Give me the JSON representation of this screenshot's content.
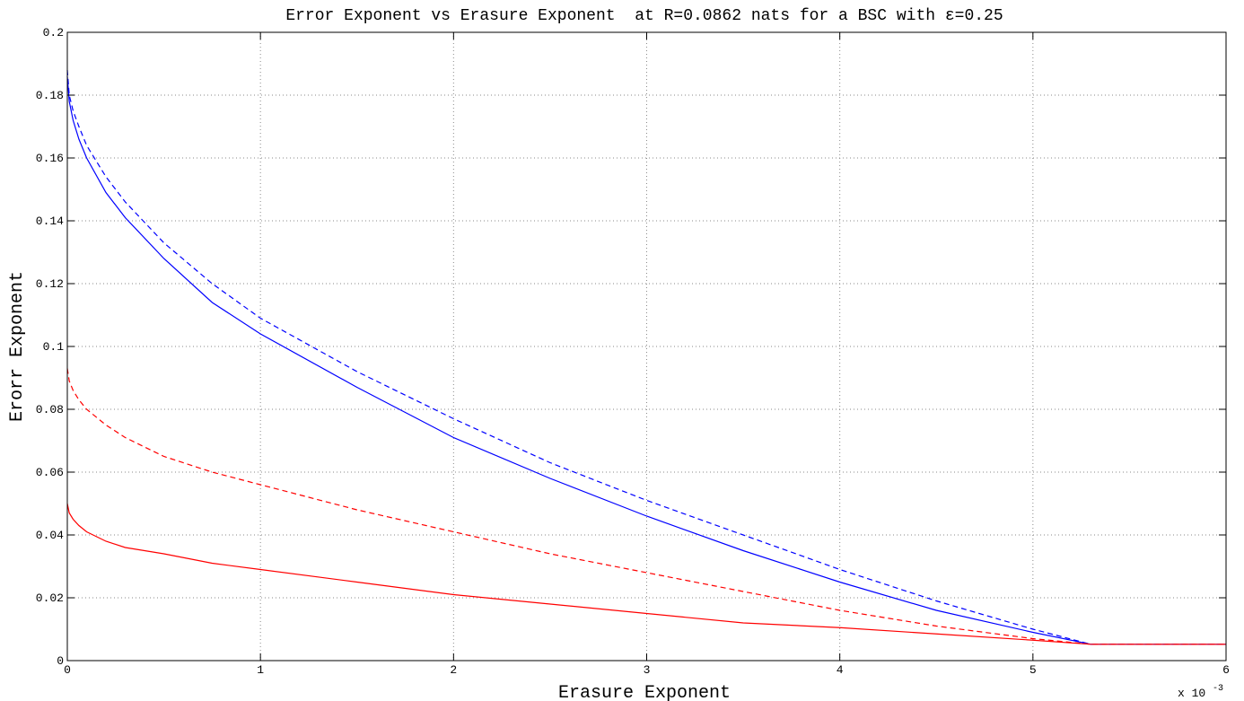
{
  "chart_data": {
    "type": "line",
    "title": "Error Exponent vs Erasure Exponent  at R=0.0862 nats for a BSC with ε=0.25",
    "xlabel": "Erasure Exponent",
    "ylabel": "Erorr Exponent",
    "x_multiplier_label": "x 10",
    "x_multiplier_exponent": "-3",
    "xlim": [
      0,
      6
    ],
    "ylim": [
      0,
      0.2
    ],
    "grid": true,
    "x_ticks": [
      0,
      1,
      2,
      3,
      4,
      5,
      6
    ],
    "x_tick_labels": [
      "0",
      "1",
      "2",
      "3",
      "4",
      "5",
      "6"
    ],
    "y_ticks": [
      0,
      0.02,
      0.04,
      0.06,
      0.08,
      0.1,
      0.12,
      0.14,
      0.16,
      0.18,
      0.2
    ],
    "y_tick_labels": [
      "0",
      "0.02",
      "0.04",
      "0.06",
      "0.08",
      "0.1",
      "0.12",
      "0.14",
      "0.16",
      "0.18",
      "0.2"
    ],
    "series": [
      {
        "color": "#0000ff",
        "dashed": false,
        "x": [
          0,
          0.01,
          0.03,
          0.06,
          0.1,
          0.2,
          0.3,
          0.5,
          0.75,
          1,
          1.5,
          2,
          2.5,
          3,
          3.5,
          4,
          4.5,
          5,
          5.3,
          6
        ],
        "y": [
          0.186,
          0.178,
          0.172,
          0.166,
          0.16,
          0.149,
          0.141,
          0.128,
          0.114,
          0.104,
          0.087,
          0.071,
          0.058,
          0.046,
          0.035,
          0.025,
          0.016,
          0.009,
          0.0052,
          0.0052
        ]
      },
      {
        "color": "#0000ff",
        "dashed": true,
        "x": [
          0,
          0.01,
          0.03,
          0.06,
          0.1,
          0.2,
          0.3,
          0.5,
          0.75,
          1,
          1.5,
          2,
          2.5,
          3,
          3.5,
          4,
          4.5,
          5,
          5.3,
          6
        ],
        "y": [
          0.188,
          0.18,
          0.175,
          0.17,
          0.164,
          0.154,
          0.146,
          0.133,
          0.12,
          0.109,
          0.092,
          0.077,
          0.063,
          0.051,
          0.04,
          0.029,
          0.019,
          0.01,
          0.0052,
          0.0052
        ]
      },
      {
        "color": "#ff0000",
        "dashed": true,
        "x": [
          0,
          0.01,
          0.03,
          0.06,
          0.1,
          0.2,
          0.3,
          0.5,
          0.75,
          1,
          1.5,
          2,
          2.5,
          3,
          3.5,
          4,
          4.5,
          5,
          5.3,
          6
        ],
        "y": [
          0.093,
          0.089,
          0.086,
          0.083,
          0.08,
          0.075,
          0.071,
          0.065,
          0.06,
          0.056,
          0.048,
          0.041,
          0.034,
          0.028,
          0.022,
          0.016,
          0.011,
          0.007,
          0.0052,
          0.0052
        ]
      },
      {
        "color": "#ff0000",
        "dashed": false,
        "x": [
          0,
          0.01,
          0.03,
          0.06,
          0.1,
          0.2,
          0.3,
          0.5,
          0.75,
          1,
          1.5,
          2,
          2.5,
          3,
          3.5,
          4,
          4.5,
          5,
          5.3,
          6
        ],
        "y": [
          0.05,
          0.047,
          0.045,
          0.043,
          0.041,
          0.038,
          0.036,
          0.034,
          0.031,
          0.029,
          0.025,
          0.021,
          0.018,
          0.015,
          0.012,
          0.0105,
          0.0085,
          0.0065,
          0.0052,
          0.0052
        ]
      }
    ]
  }
}
